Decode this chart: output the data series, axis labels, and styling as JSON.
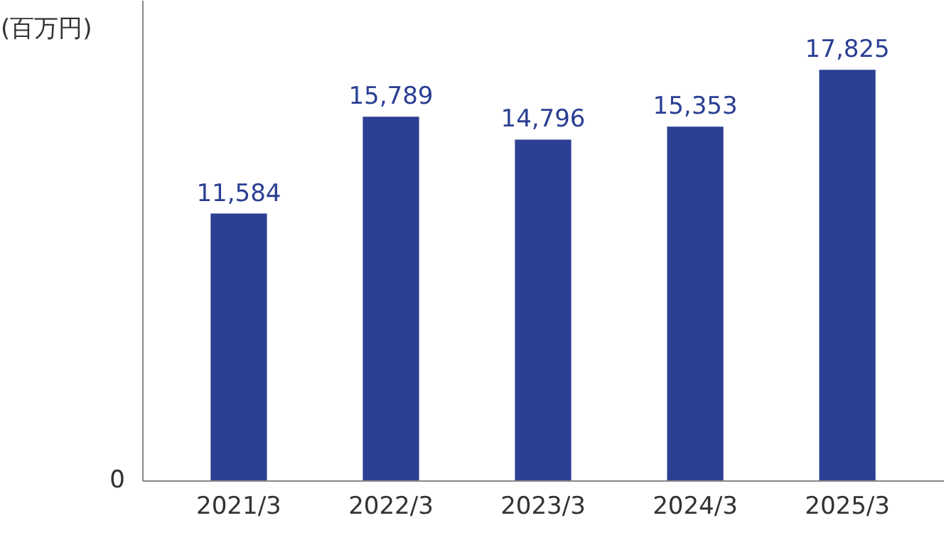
{
  "chart_data": {
    "type": "bar",
    "ylabel": "(百万円)",
    "categories": [
      "2021/3",
      "2022/3",
      "2023/3",
      "2024/3",
      "2025/3"
    ],
    "values": [
      11584,
      15789,
      14796,
      15353,
      17825
    ],
    "color": "#2b3f93",
    "value_labels": [
      "11,584",
      "15,789",
      "14,796",
      "15,353",
      "17,825"
    ],
    "annotations": [
      "0"
    ]
  }
}
